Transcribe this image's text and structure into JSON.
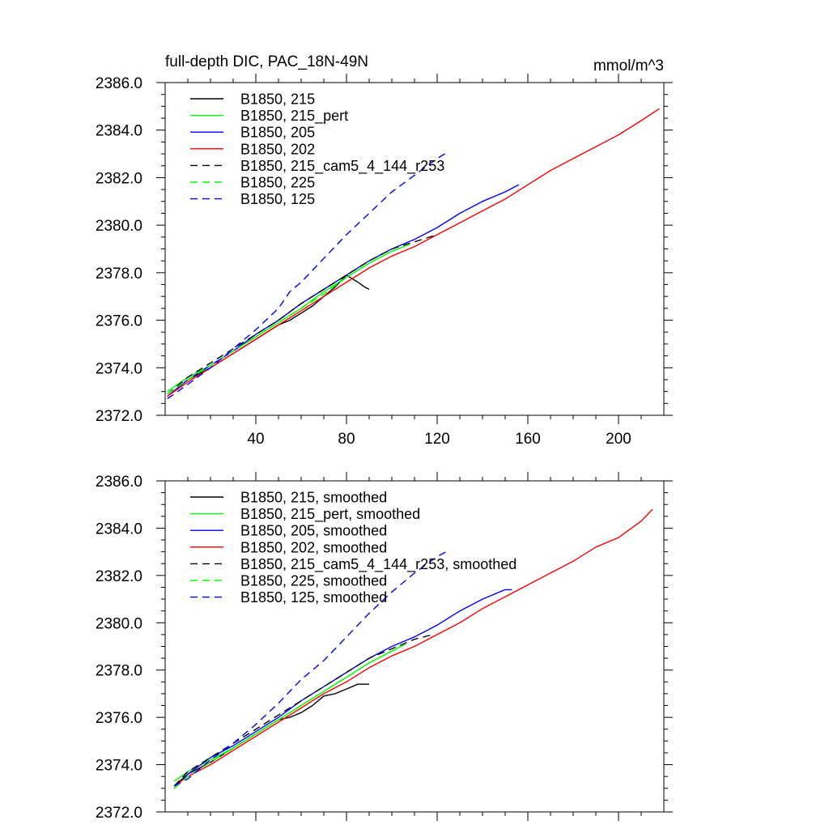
{
  "figure": {
    "title": "full-depth DIC, PAC_18N-49N",
    "units": "mmol/m^3"
  },
  "chart_data": [
    {
      "type": "line",
      "title": "full-depth DIC, PAC_18N-49N",
      "units_label": "mmol/m^3",
      "xlim": [
        0,
        220
      ],
      "ylim": [
        2372.0,
        2386.0
      ],
      "x_ticks": [
        40,
        80,
        120,
        160,
        200
      ],
      "x_tick_labels": [
        "40",
        "80",
        "120",
        "160",
        "200"
      ],
      "y_ticks": [
        2372.0,
        2374.0,
        2376.0,
        2378.0,
        2380.0,
        2382.0,
        2384.0,
        2386.0
      ],
      "y_tick_labels": [
        "2372.0",
        "2374.0",
        "2376.0",
        "2378.0",
        "2380.0",
        "2382.0",
        "2384.0",
        "2386.0"
      ],
      "grid": false,
      "legend_position": "top-left",
      "series": [
        {
          "name": "B1850, 215",
          "color": "#000000",
          "dash": "solid",
          "x": [
            1,
            10,
            20,
            30,
            40,
            50,
            55,
            60,
            65,
            70,
            75,
            80,
            85,
            88,
            90
          ],
          "y": [
            2372.8,
            2373.5,
            2374.0,
            2374.6,
            2375.2,
            2375.8,
            2376.0,
            2376.3,
            2376.6,
            2377.0,
            2377.4,
            2377.9,
            2377.6,
            2377.4,
            2377.3
          ]
        },
        {
          "name": "B1850, 215_pert",
          "color": "#00ff00",
          "dash": "solid",
          "x": [
            1,
            10,
            20,
            30,
            40,
            50,
            60,
            70,
            80,
            90,
            100,
            108
          ],
          "y": [
            2373.0,
            2373.6,
            2374.1,
            2374.7,
            2375.3,
            2375.9,
            2376.5,
            2377.2,
            2377.8,
            2378.4,
            2378.9,
            2379.2
          ]
        },
        {
          "name": "B1850, 205",
          "color": "#0000ff",
          "dash": "solid",
          "x": [
            1,
            10,
            20,
            30,
            40,
            50,
            60,
            70,
            80,
            90,
            100,
            110,
            120,
            130,
            140,
            150,
            156
          ],
          "y": [
            2372.8,
            2373.5,
            2374.1,
            2374.7,
            2375.4,
            2376.0,
            2376.7,
            2377.3,
            2377.9,
            2378.5,
            2379.0,
            2379.4,
            2379.9,
            2380.5,
            2381.0,
            2381.4,
            2381.7
          ]
        },
        {
          "name": "B1850, 202",
          "color": "#ff0000",
          "dash": "solid",
          "x": [
            1,
            10,
            20,
            30,
            40,
            50,
            60,
            70,
            80,
            90,
            100,
            110,
            120,
            130,
            140,
            150,
            160,
            170,
            180,
            190,
            200,
            210,
            218
          ],
          "y": [
            2372.8,
            2373.4,
            2374.0,
            2374.6,
            2375.2,
            2375.8,
            2376.4,
            2377.0,
            2377.6,
            2378.2,
            2378.7,
            2379.1,
            2379.6,
            2380.1,
            2380.6,
            2381.1,
            2381.7,
            2382.3,
            2382.8,
            2383.3,
            2383.8,
            2384.4,
            2384.9
          ]
        },
        {
          "name": "B1850, 215_cam5_4_144_r253",
          "color": "#000000",
          "dash": "dashed",
          "x": [
            1,
            10,
            20,
            30,
            40,
            50,
            60,
            70,
            80,
            90,
            100,
            110,
            120
          ],
          "y": [
            2372.9,
            2373.6,
            2374.2,
            2374.8,
            2375.4,
            2376.0,
            2376.7,
            2377.3,
            2377.9,
            2378.5,
            2379.0,
            2379.3,
            2379.6
          ]
        },
        {
          "name": "B1850, 225",
          "color": "#00ff00",
          "dash": "dashed",
          "x": [
            1,
            10,
            20,
            30,
            40,
            50,
            60,
            70,
            80,
            90,
            100,
            108
          ],
          "y": [
            2372.9,
            2373.5,
            2374.1,
            2374.7,
            2375.3,
            2375.9,
            2376.5,
            2377.1,
            2377.8,
            2378.4,
            2378.9,
            2379.2
          ]
        },
        {
          "name": "B1850, 125",
          "color": "#0000ff",
          "dash": "dashed",
          "x": [
            1,
            10,
            20,
            30,
            40,
            50,
            55,
            60,
            70,
            80,
            90,
            100,
            110,
            120,
            125
          ],
          "y": [
            2372.7,
            2373.3,
            2374.0,
            2374.8,
            2375.6,
            2376.5,
            2377.2,
            2377.6,
            2378.6,
            2379.6,
            2380.5,
            2381.4,
            2382.1,
            2382.8,
            2383.1
          ]
        }
      ]
    },
    {
      "type": "line",
      "xlim": [
        0,
        220
      ],
      "ylim": [
        2372.0,
        2386.0
      ],
      "x_ticks": [
        40,
        80,
        120,
        160,
        200
      ],
      "y_ticks": [
        2372.0,
        2374.0,
        2376.0,
        2378.0,
        2380.0,
        2382.0,
        2384.0,
        2386.0
      ],
      "y_tick_labels": [
        "2372.0",
        "2374.0",
        "2376.0",
        "2378.0",
        "2380.0",
        "2382.0",
        "2384.0",
        "2386.0"
      ],
      "grid": false,
      "legend_position": "top-left",
      "series": [
        {
          "name": "B1850, 215, smoothed",
          "color": "#000000",
          "dash": "solid",
          "x": [
            4,
            10,
            20,
            30,
            40,
            50,
            55,
            60,
            65,
            70,
            75,
            80,
            85,
            90
          ],
          "y": [
            2373.1,
            2373.6,
            2374.1,
            2374.7,
            2375.3,
            2375.9,
            2376.0,
            2376.2,
            2376.5,
            2376.9,
            2377.0,
            2377.2,
            2377.4,
            2377.4
          ]
        },
        {
          "name": "B1850, 215_pert, smoothed",
          "color": "#00ff00",
          "dash": "solid",
          "x": [
            4,
            10,
            20,
            30,
            40,
            50,
            60,
            70,
            80,
            90,
            100,
            106
          ],
          "y": [
            2373.3,
            2373.7,
            2374.2,
            2374.7,
            2375.3,
            2375.9,
            2376.5,
            2377.1,
            2377.7,
            2378.3,
            2378.8,
            2379.1
          ]
        },
        {
          "name": "B1850, 205, smoothed",
          "color": "#0000ff",
          "dash": "solid",
          "x": [
            4,
            10,
            20,
            30,
            40,
            50,
            60,
            70,
            80,
            90,
            100,
            110,
            120,
            130,
            140,
            150,
            153
          ],
          "y": [
            2373.0,
            2373.6,
            2374.3,
            2374.8,
            2375.4,
            2376.0,
            2376.7,
            2377.3,
            2377.9,
            2378.5,
            2379.0,
            2379.4,
            2379.9,
            2380.5,
            2381.0,
            2381.4,
            2381.4
          ]
        },
        {
          "name": "B1850, 202, smoothed",
          "color": "#ff0000",
          "dash": "solid",
          "x": [
            4,
            10,
            20,
            30,
            40,
            50,
            60,
            70,
            80,
            90,
            100,
            110,
            120,
            130,
            140,
            150,
            160,
            170,
            180,
            190,
            200,
            210,
            215
          ],
          "y": [
            2373.1,
            2373.5,
            2374.0,
            2374.6,
            2375.2,
            2375.8,
            2376.4,
            2377.0,
            2377.5,
            2378.1,
            2378.6,
            2379.0,
            2379.5,
            2380.0,
            2380.6,
            2381.1,
            2381.6,
            2382.1,
            2382.6,
            2383.2,
            2383.6,
            2384.3,
            2384.8
          ]
        },
        {
          "name": "B1850, 215_cam5_4_144_r253, smoothed",
          "color": "#000000",
          "dash": "dashed",
          "x": [
            4,
            10,
            20,
            30,
            40,
            50,
            60,
            70,
            80,
            90,
            100,
            110,
            118
          ],
          "y": [
            2373.1,
            2373.7,
            2374.3,
            2374.9,
            2375.5,
            2376.1,
            2376.7,
            2377.3,
            2377.9,
            2378.5,
            2378.9,
            2379.3,
            2379.5
          ]
        },
        {
          "name": "B1850, 225, smoothed",
          "color": "#00ff00",
          "dash": "dashed",
          "x": [
            4,
            10,
            20,
            30,
            40,
            50,
            60,
            70,
            80,
            90,
            100,
            106
          ],
          "y": [
            2373.0,
            2373.5,
            2374.1,
            2374.7,
            2375.3,
            2375.9,
            2376.5,
            2377.1,
            2377.7,
            2378.3,
            2378.8,
            2379.1
          ]
        },
        {
          "name": "B1850, 125, smoothed",
          "color": "#0000ff",
          "dash": "dashed",
          "x": [
            4,
            10,
            20,
            30,
            40,
            50,
            60,
            70,
            80,
            90,
            100,
            110,
            120,
            124
          ],
          "y": [
            2373.1,
            2373.4,
            2374.2,
            2374.9,
            2375.7,
            2376.6,
            2377.6,
            2378.4,
            2379.4,
            2380.4,
            2381.3,
            2382.1,
            2382.8,
            2383.0
          ]
        }
      ]
    }
  ]
}
